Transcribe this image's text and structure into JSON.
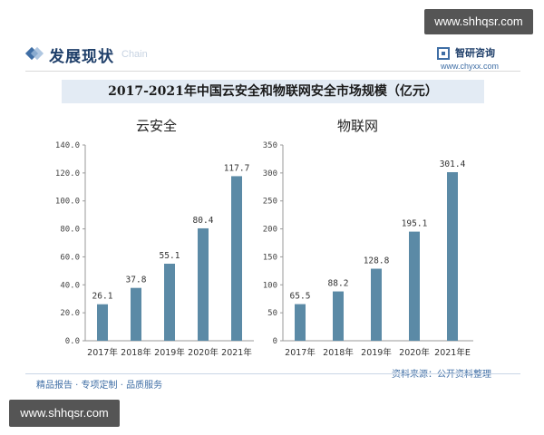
{
  "watermark_top": "www.shhqsr.com",
  "watermark_bottom": "www.shhqsr.com",
  "header": {
    "title": "发展现状",
    "subtitle": "Chain"
  },
  "brand": {
    "name": "智研咨询",
    "url": "www.chyxx.com"
  },
  "title": "2017-2021年中国云安全和物联网安全市场规模（亿元）",
  "footer": {
    "left": "精品报告 · 专项定制 · 品质服务",
    "source": "资料来源：公开资料整理"
  },
  "colors": {
    "bar": "#5b8aa6",
    "accent": "#3f6ea5",
    "band": "#e3ebf4"
  },
  "chart_data": [
    {
      "type": "bar",
      "title": "云安全",
      "categories": [
        "2017年",
        "2018年",
        "2019年",
        "2020年",
        "2021年"
      ],
      "values": [
        26.1,
        37.8,
        55.1,
        80.4,
        117.7
      ],
      "value_labels": [
        "26.1",
        "37.8",
        "55.1",
        "80.4",
        "117.7"
      ],
      "ylim": [
        0,
        140
      ],
      "yticks": [
        "0.0",
        "20.0",
        "40.0",
        "60.0",
        "80.0",
        "100.0",
        "120.0",
        "140.0"
      ],
      "grid": false
    },
    {
      "type": "bar",
      "title": "物联网",
      "categories": [
        "2017年",
        "2018年",
        "2019年",
        "2020年",
        "2021年E"
      ],
      "values": [
        65.5,
        88.2,
        128.8,
        195.1,
        301.4
      ],
      "value_labels": [
        "65.5",
        "88.2",
        "128.8",
        "195.1",
        "301.4"
      ],
      "ylim": [
        0,
        350
      ],
      "yticks": [
        "0",
        "50",
        "100",
        "150",
        "200",
        "250",
        "300",
        "350"
      ],
      "grid": false
    }
  ]
}
